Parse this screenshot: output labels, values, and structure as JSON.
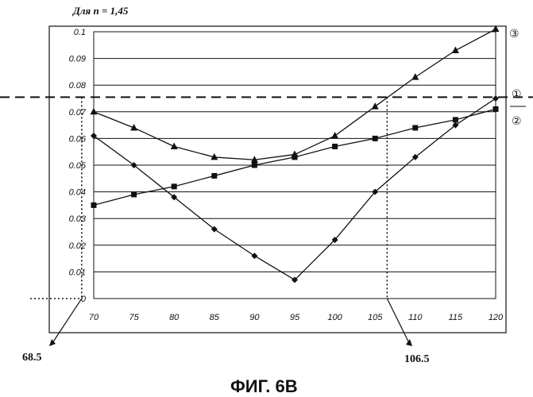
{
  "header_note": "Для n = 1,45",
  "caption": "ФИГ. 6В",
  "markers": {
    "m1": "①",
    "m2": "②",
    "m3": "③"
  },
  "annotations": {
    "left": "68.5",
    "right": "106.5"
  },
  "chart_data": {
    "type": "line",
    "x": [
      70,
      75,
      80,
      85,
      90,
      95,
      100,
      105,
      110,
      115,
      120
    ],
    "x_tick_labels": [
      "70",
      "75",
      "80",
      "85",
      "90",
      "95",
      "100",
      "105",
      "110",
      "115",
      "120"
    ],
    "y_tick_values": [
      0,
      0.01,
      0.02,
      0.03,
      0.04,
      0.05,
      0.06,
      0.07,
      0.08,
      0.09,
      0.1
    ],
    "y_tick_labels": [
      "0",
      "0.01",
      "0.02",
      "0.03",
      "0.04",
      "0.05",
      "0.06",
      "0.07",
      "0.08",
      "0.09",
      "0.1"
    ],
    "xlim": [
      70,
      120
    ],
    "ylim": [
      0,
      0.1
    ],
    "grid": true,
    "series": [
      {
        "name": "diamond",
        "marker": "diamond",
        "values": [
          0.061,
          0.05,
          0.038,
          0.026,
          0.016,
          0.007,
          0.022,
          0.04,
          0.053,
          0.065,
          0.075
        ]
      },
      {
        "name": "square",
        "marker": "square",
        "values": [
          0.035,
          0.039,
          0.042,
          0.046,
          0.05,
          0.053,
          0.057,
          0.06,
          0.064,
          0.067,
          0.071
        ]
      },
      {
        "name": "triangle",
        "marker": "triangle",
        "values": [
          0.07,
          0.064,
          0.057,
          0.053,
          0.052,
          0.054,
          0.061,
          0.072,
          0.083,
          0.093,
          0.101
        ]
      }
    ],
    "reference_line": {
      "y": 0.0755,
      "style": "dashed"
    },
    "crossings_x": [
      68.5,
      106.5
    ]
  }
}
